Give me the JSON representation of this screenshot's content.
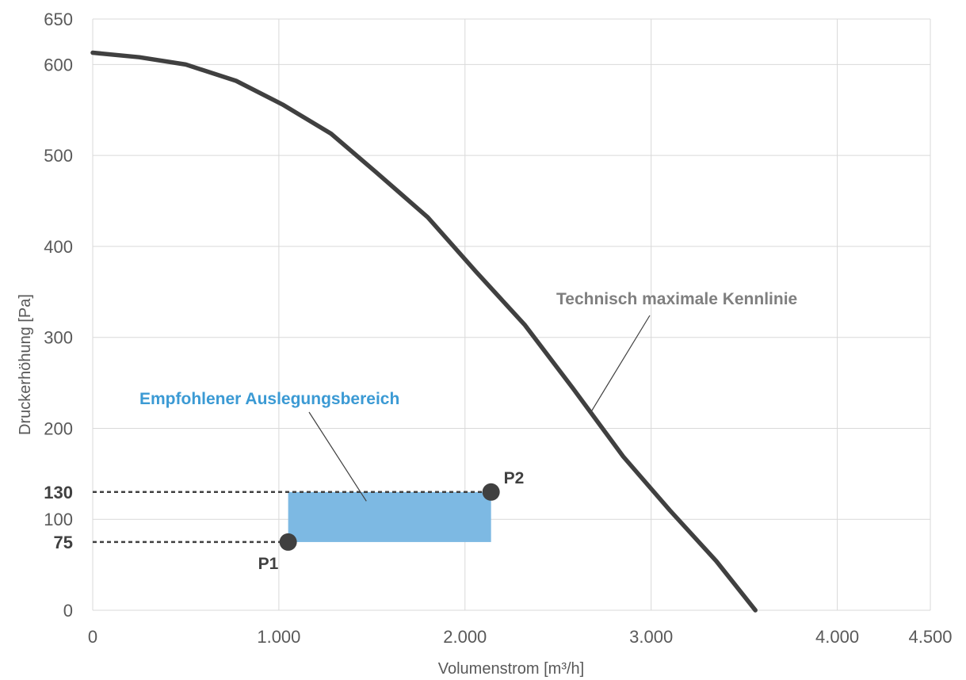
{
  "chart_data": {
    "type": "line",
    "xlabel": "Volumenstrom [m³/h]",
    "ylabel": "Druckerhöhung [Pa]",
    "xlim": [
      0,
      4500
    ],
    "ylim": [
      0,
      650
    ],
    "grid": true,
    "x_ticks": [
      {
        "value": 0,
        "label": "0"
      },
      {
        "value": 1000,
        "label": "1.000"
      },
      {
        "value": 2000,
        "label": "2.000"
      },
      {
        "value": 3000,
        "label": "3.000"
      },
      {
        "value": 4000,
        "label": "4.000"
      },
      {
        "value": 4500,
        "label": "4.500"
      }
    ],
    "y_ticks": [
      {
        "value": 0,
        "label": "0",
        "bold": false
      },
      {
        "value": 75,
        "label": "75",
        "bold": true
      },
      {
        "value": 100,
        "label": "100",
        "bold": false
      },
      {
        "value": 130,
        "label": "130",
        "bold": true
      },
      {
        "value": 200,
        "label": "200",
        "bold": false
      },
      {
        "value": 300,
        "label": "300",
        "bold": false
      },
      {
        "value": 400,
        "label": "400",
        "bold": false
      },
      {
        "value": 500,
        "label": "500",
        "bold": false
      },
      {
        "value": 600,
        "label": "600",
        "bold": false
      },
      {
        "value": 650,
        "label": "650",
        "bold": false
      }
    ],
    "y_gridlines": [
      0,
      100,
      200,
      300,
      400,
      500,
      600,
      650
    ],
    "x_gridlines": [
      0,
      1000,
      2000,
      3000,
      4000,
      4500
    ],
    "series": [
      {
        "name": "Technisch maximale Kennlinie",
        "color": "#404040",
        "points": [
          [
            0,
            613
          ],
          [
            250,
            608
          ],
          [
            500,
            600
          ],
          [
            770,
            582
          ],
          [
            1020,
            556
          ],
          [
            1280,
            524
          ],
          [
            1520,
            482
          ],
          [
            1800,
            432
          ],
          [
            2060,
            372
          ],
          [
            2320,
            314
          ],
          [
            2580,
            244
          ],
          [
            2850,
            169
          ],
          [
            3100,
            110
          ],
          [
            3350,
            54
          ],
          [
            3560,
            0
          ]
        ]
      }
    ],
    "region": {
      "label": "Empfohlener Auslegungsbereich",
      "color": "#7DB9E3",
      "label_color": "#3B9AD4",
      "x": [
        1050,
        2140
      ],
      "y": [
        75,
        130
      ]
    },
    "points": [
      {
        "label": "P1",
        "x": 1050,
        "y": 75
      },
      {
        "label": "P2",
        "x": 2140,
        "y": 130
      }
    ],
    "reference_lines": [
      {
        "y": 130,
        "x_end": 2140
      },
      {
        "y": 75,
        "x_end": 1050
      }
    ],
    "annotations": [
      {
        "text": "Technisch maximale Kennlinie",
        "target_x": 2680,
        "target_y": 219
      },
      {
        "text": "Empfohlener Auslegungsbereich",
        "target_x": 1470,
        "target_y": 120
      }
    ]
  }
}
